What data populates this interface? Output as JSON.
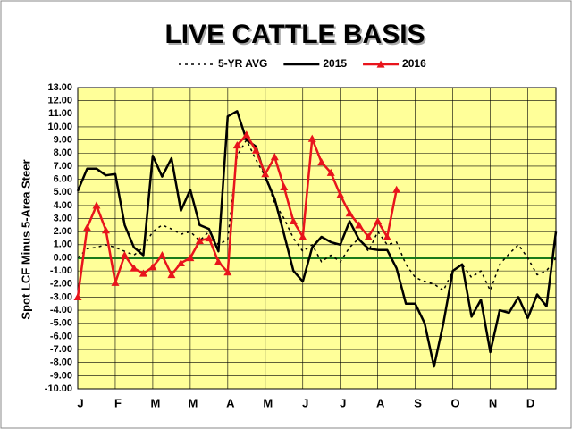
{
  "chart_data": {
    "type": "line",
    "title": "LIVE CATTLE BASIS",
    "y_label": "Spot LCF Minus 5-Area Steer",
    "categories": [
      "J",
      null,
      null,
      null,
      "F",
      null,
      null,
      null,
      "M",
      null,
      null,
      null,
      "M",
      null,
      null,
      null,
      "A",
      null,
      null,
      null,
      "M",
      null,
      null,
      null,
      "J",
      null,
      null,
      null,
      "J",
      null,
      null,
      null,
      "A",
      null,
      null,
      null,
      "S",
      null,
      null,
      null,
      "O",
      null,
      null,
      null,
      "N",
      null,
      null,
      null,
      "D",
      null,
      null,
      null
    ],
    "series": [
      {
        "name": "5-YR AVG",
        "color": "#000000",
        "line_style": "dotted",
        "values": [
          0,
          0.7,
          0.8,
          1.0,
          0.8,
          0.5,
          0.2,
          0.8,
          2.0,
          2.5,
          2.2,
          1.8,
          2.0,
          1.3,
          2.0,
          1.0,
          1.4,
          7.8,
          9.0,
          7.5,
          6.2,
          4.2,
          3.0,
          1.5,
          0.5,
          1.0,
          -0.3,
          0.2,
          -0.3,
          0.8,
          1.5,
          0.5,
          2.0,
          1.0,
          1.2,
          -0.5,
          -1.5,
          -1.8,
          -2.0,
          -2.5,
          -1.0,
          -0.5,
          -1.5,
          -1.0,
          -2.5,
          -0.5,
          0.3,
          1.0,
          0,
          -1.3,
          -1.0,
          0
        ]
      },
      {
        "name": "2015",
        "color": "#000000",
        "line_style": "solid",
        "values": [
          5.1,
          6.8,
          6.8,
          6.3,
          6.4,
          2.5,
          0.8,
          0.2,
          7.8,
          6.2,
          7.6,
          3.6,
          5.2,
          2.5,
          2.2,
          0.5,
          10.8,
          11.2,
          9.0,
          8.5,
          6.2,
          4.5,
          1.8,
          -1.0,
          -1.8,
          0.8,
          1.6,
          1.2,
          1.0,
          2.8,
          1.4,
          0.7,
          0.6,
          0.6,
          -0.8,
          -3.5,
          -3.5,
          -5.0,
          -8.3,
          -5.0,
          -1.0,
          -0.5,
          -4.5,
          -3.2,
          -7.2,
          -4.0,
          -4.2,
          -3.0,
          -4.6,
          -2.8,
          -3.7,
          2.0
        ]
      },
      {
        "name": "2016",
        "color": "#e8141c",
        "line_style": "solid",
        "marker": "triangle",
        "values": [
          -3.0,
          2.3,
          4.0,
          2.1,
          -1.9,
          0.2,
          -0.8,
          -1.2,
          -0.7,
          0.2,
          -1.3,
          -0.4,
          0.0,
          1.3,
          1.5,
          -0.3,
          -1.1,
          8.6,
          9.4,
          8.2,
          6.4,
          7.7,
          5.4,
          2.8,
          1.6,
          9.1,
          7.3,
          6.5,
          4.8,
          3.4,
          2.5,
          1.6,
          2.8,
          1.6,
          5.2,
          null,
          null,
          null,
          null,
          null,
          null,
          null,
          null,
          null,
          null,
          null,
          null,
          null,
          null,
          null,
          null,
          null
        ]
      }
    ],
    "ylim": [
      -10,
      13
    ],
    "yticks": [
      {
        "value": 13,
        "label": "13.00"
      },
      {
        "value": 12,
        "label": "12.00"
      },
      {
        "value": 11,
        "label": "11.00"
      },
      {
        "value": 10,
        "label": "10.00"
      },
      {
        "value": 9,
        "label": "9.00"
      },
      {
        "value": 8,
        "label": "8.00"
      },
      {
        "value": 7,
        "label": "7.00"
      },
      {
        "value": 6,
        "label": "6.00"
      },
      {
        "value": 5,
        "label": "5.00"
      },
      {
        "value": 4,
        "label": "4.00"
      },
      {
        "value": 3,
        "label": "3.00"
      },
      {
        "value": 2,
        "label": "2.00"
      },
      {
        "value": 1,
        "label": "1.00"
      },
      {
        "value": 0,
        "label": "0.00"
      },
      {
        "value": -1,
        "label": "-1.00"
      },
      {
        "value": -2,
        "label": "-2.00"
      },
      {
        "value": -3,
        "label": "-3.00"
      },
      {
        "value": -4,
        "label": "-4.00"
      },
      {
        "value": -5,
        "label": "-5.00"
      },
      {
        "value": -6,
        "label": "-6.00"
      },
      {
        "value": -7,
        "label": "-7.00"
      },
      {
        "value": -8,
        "label": "-8.00"
      },
      {
        "value": -9,
        "label": "-9.00"
      },
      {
        "value": -10,
        "label": "-10.00"
      }
    ],
    "grid": true,
    "zero_line_color": "#1a7a1a",
    "plot_background": "#ffff99"
  }
}
